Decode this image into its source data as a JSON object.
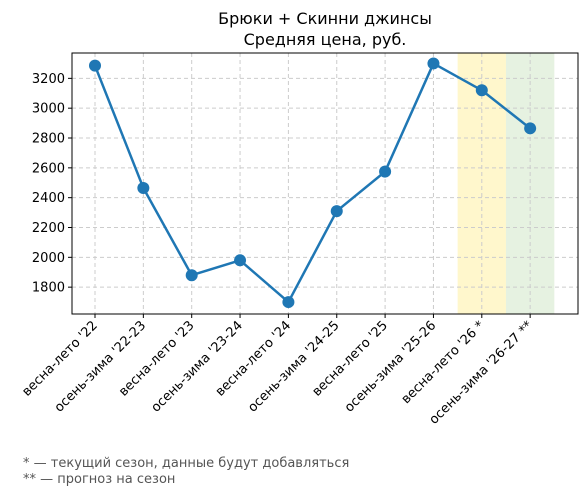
{
  "chart_data": {
    "type": "line",
    "title": "Брюки + Скинни джинсы",
    "subtitle": "Средняя цена, руб.",
    "xlabel": "",
    "ylabel": "",
    "categories": [
      "весна-лето '22",
      "осень-зима '22-23",
      "весна-лето '23",
      "осень-зима '23-24",
      "весна-лето '24",
      "осень-зима '24-25",
      "весна-лето '25",
      "осень-зима '25-26",
      "весна-лето '26 *",
      "осень-зима '26-27 **"
    ],
    "series": [
      {
        "values": [
          3285,
          2465,
          1880,
          1980,
          1700,
          2310,
          2575,
          3300,
          3120,
          2865
        ],
        "color": "#1f77b4"
      }
    ],
    "y_ticks": [
      1800,
      2000,
      2200,
      2400,
      2600,
      2800,
      3000,
      3200
    ],
    "ylim": [
      1620,
      3370
    ],
    "grid": true,
    "highlights": [
      {
        "category_index": 8,
        "color": "#fff7cc",
        "meaning": "current season"
      },
      {
        "category_index": 9,
        "color": "#e6f2e1",
        "meaning": "forecast"
      }
    ]
  },
  "footnotes": {
    "current": "* — текущий сезон, данные будут добавляться",
    "forecast": "** — прогноз на сезон"
  }
}
